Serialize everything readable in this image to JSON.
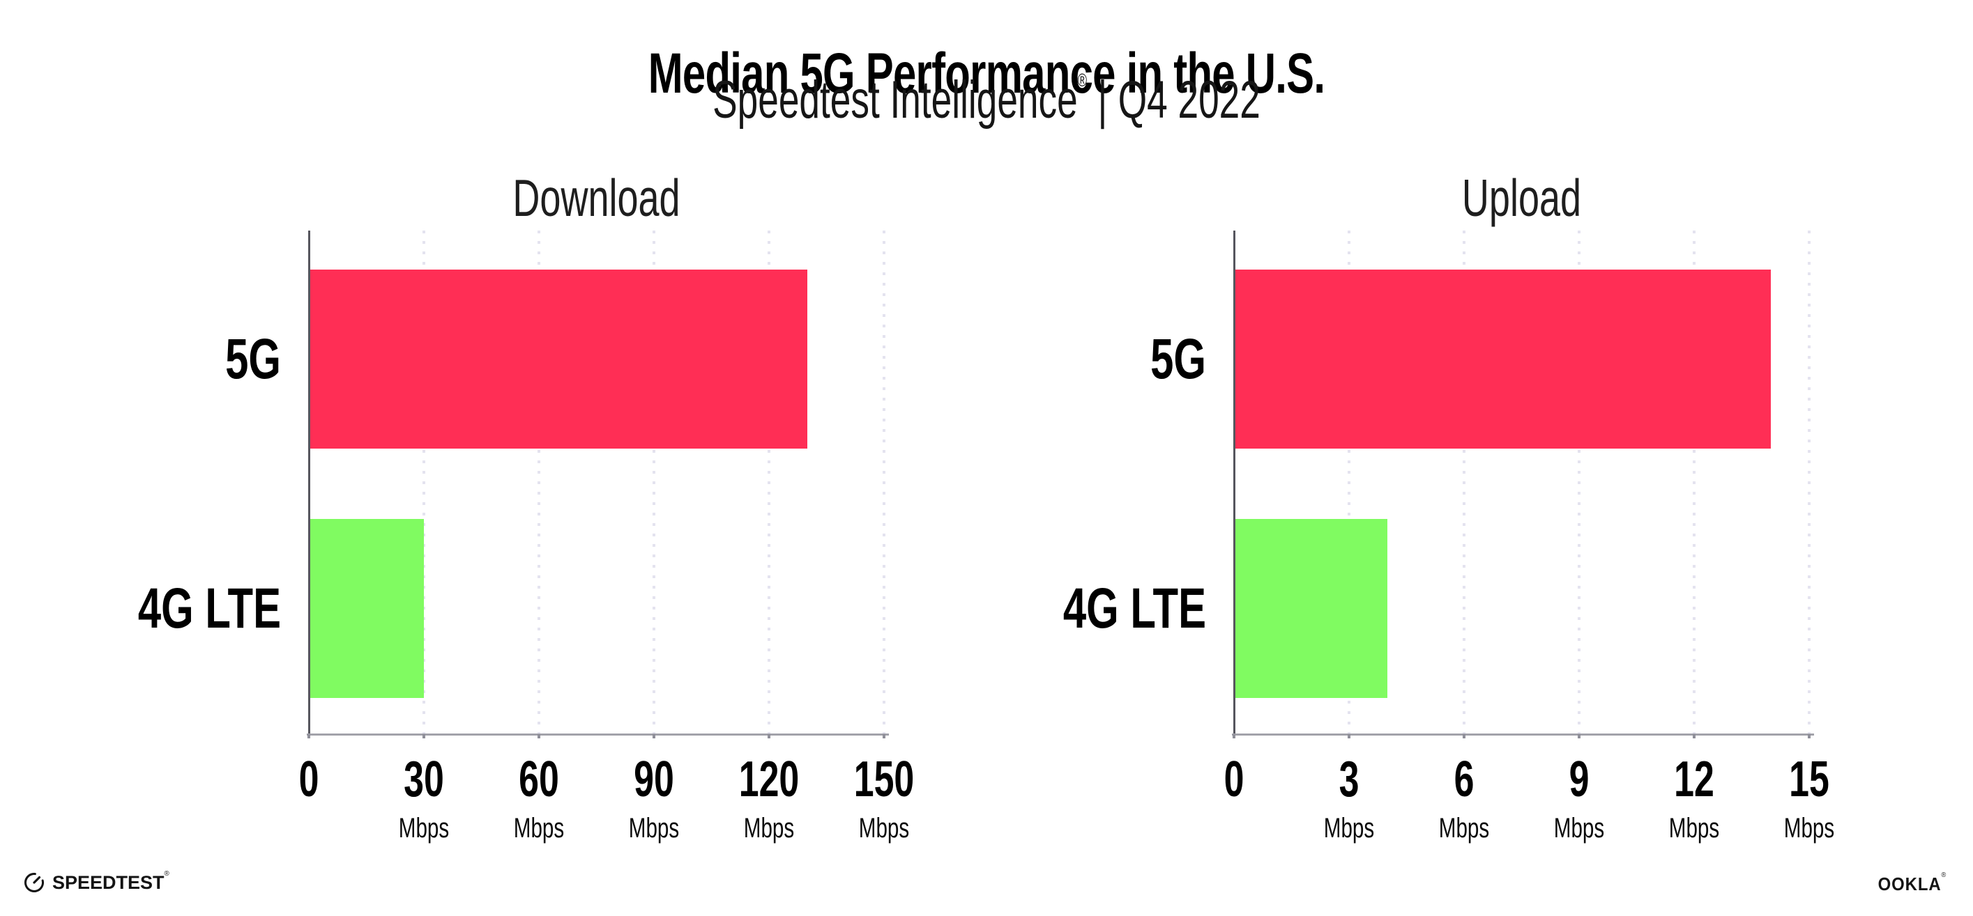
{
  "header": {
    "title": "Median 5G Performance in the U.S.",
    "brand": "Speedtest Intelligence",
    "registered_mark": "®",
    "divider": "|",
    "period": "Q4 2022"
  },
  "chart_data": [
    {
      "type": "bar",
      "orientation": "horizontal",
      "title": "Download",
      "categories": [
        "5G",
        "4G LTE"
      ],
      "values": [
        130,
        30
      ],
      "unit": "Mbps",
      "xlabel": "",
      "ylabel": "",
      "xlim": [
        0,
        150
      ],
      "ticks": [
        0,
        30,
        60,
        90,
        120,
        150
      ],
      "bar_colors": [
        "#ff2e55",
        "#80fb61"
      ],
      "grid": "dotted-vertical-gridlines",
      "legend": "none"
    },
    {
      "type": "bar",
      "orientation": "horizontal",
      "title": "Upload",
      "categories": [
        "5G",
        "4G LTE"
      ],
      "values": [
        14,
        4
      ],
      "unit": "Mbps",
      "xlabel": "",
      "ylabel": "",
      "xlim": [
        0,
        15
      ],
      "ticks": [
        0,
        3,
        6,
        9,
        12,
        15
      ],
      "bar_colors": [
        "#ff2e55",
        "#80fb61"
      ],
      "grid": "dotted-vertical-gridlines",
      "legend": "none"
    }
  ],
  "footer": {
    "speedtest_wordmark": "SPEEDTEST",
    "speedtest_mark": "®",
    "speedtest_icon": "gauge-icon",
    "ookla_wordmark": "OOKLA",
    "ookla_mark": "®"
  },
  "colors": {
    "background": "#ffffff",
    "bar_5g": "#ff2e55",
    "bar_4g_lte": "#80fb61",
    "gridline": "#e4e3ef",
    "x_axis_line": "#a2a2aa",
    "y_axis_line": "#56565e",
    "text": "#000000"
  }
}
